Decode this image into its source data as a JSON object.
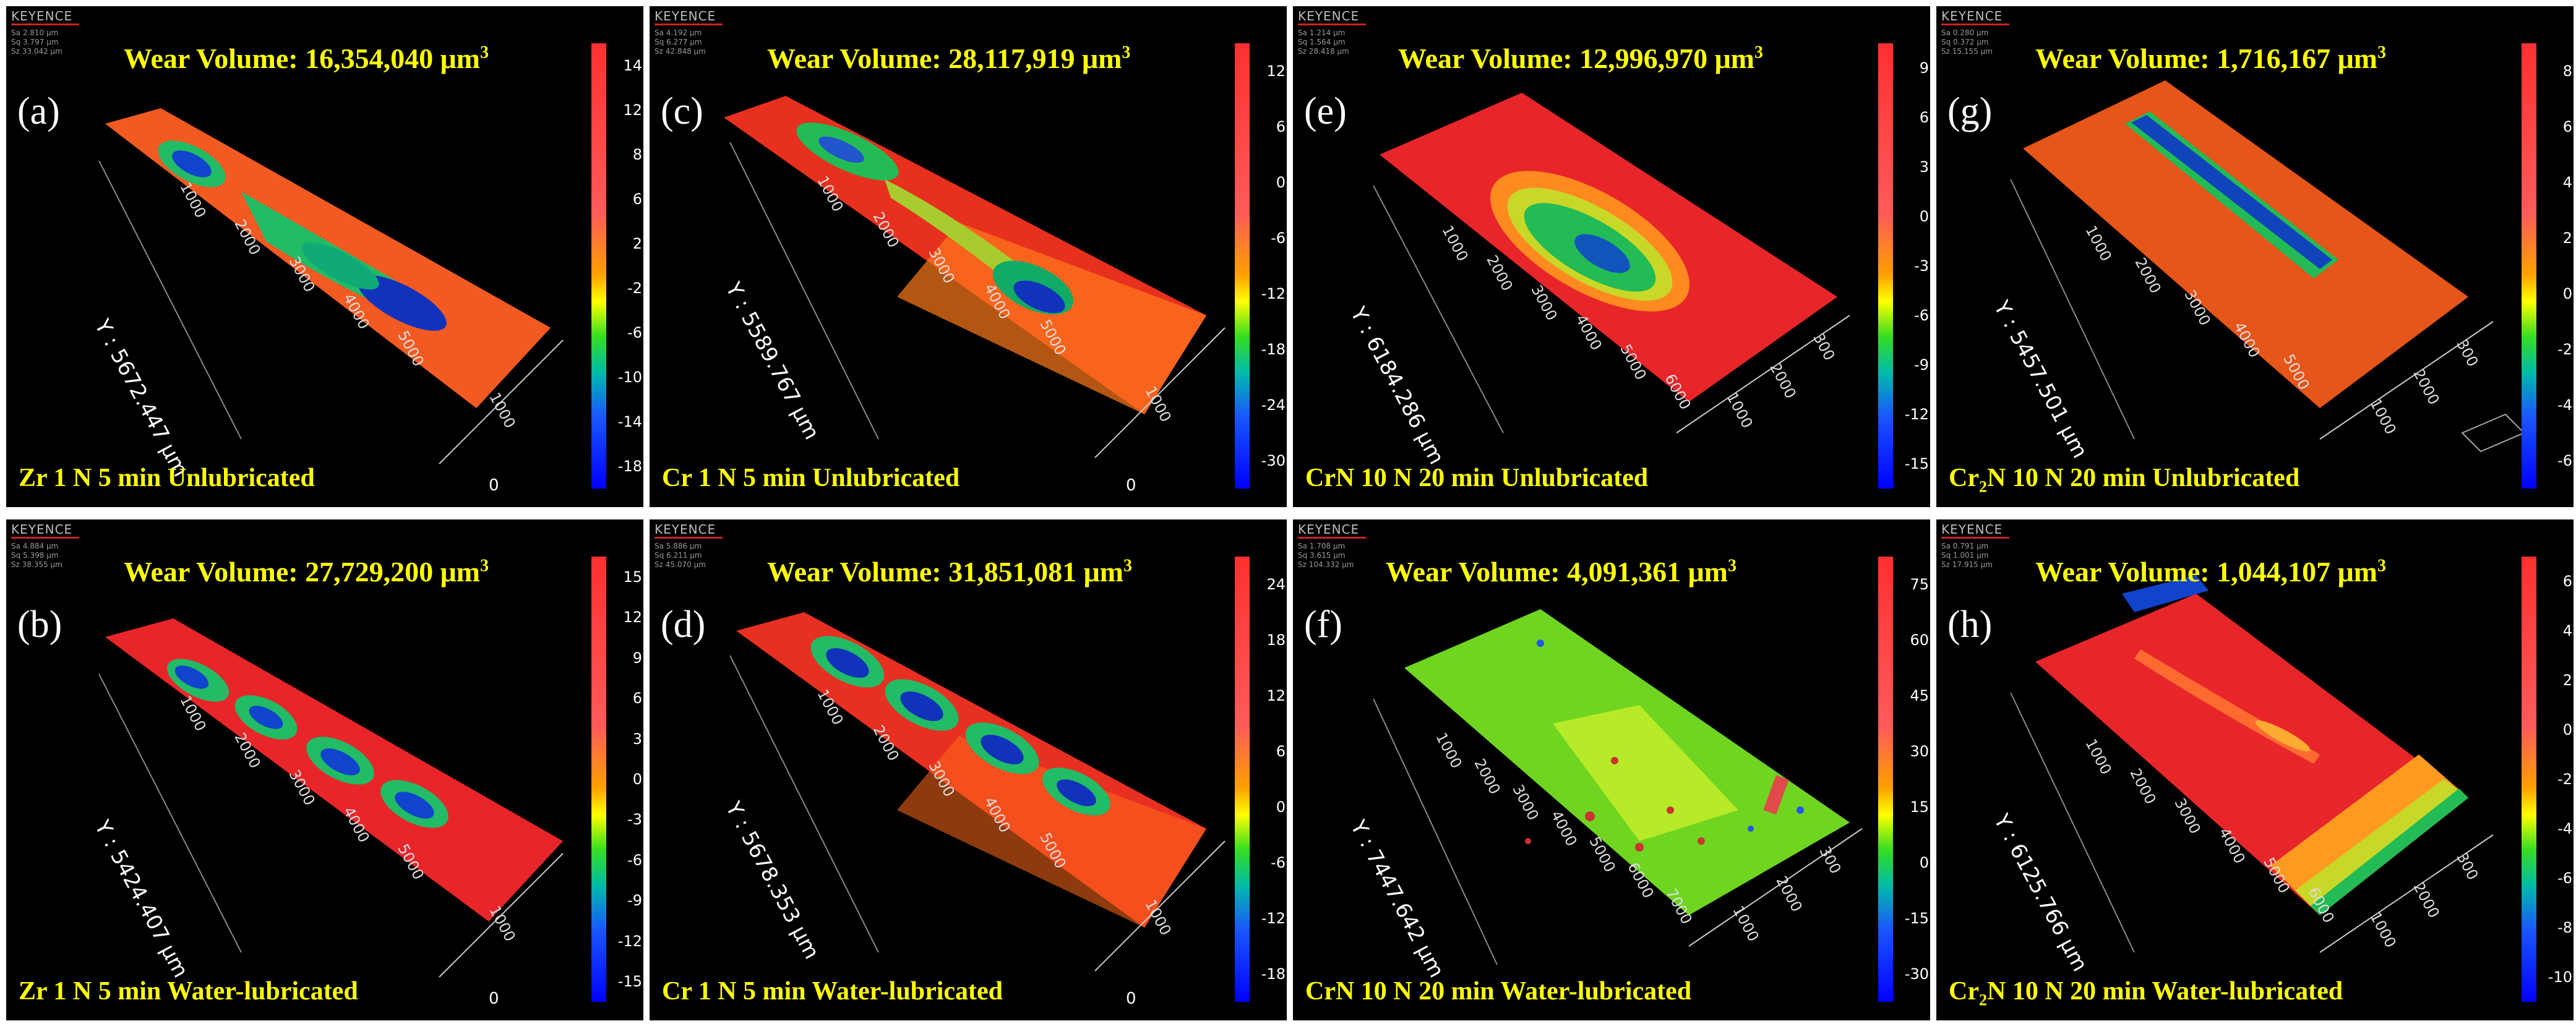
{
  "panels": {
    "a": {
      "label": "(a)",
      "volume_prefix": "Wear Volume: ",
      "volume_value": "16,354,040 μm",
      "volume_unit_exp": "3",
      "stats": [
        "Sa 2.810 μm",
        "Sq 3.797 μm",
        "Sz 33.042 μm"
      ],
      "cap_pre": "Zr 1 N 5 min Unlubricated",
      "cap_sub": "",
      "cap_post": "",
      "y_label": "Y : 5672.447 μm",
      "ticks": [
        "14",
        "12",
        "8",
        "6",
        "2",
        "-2",
        "-6",
        "-10",
        "-14",
        "-18"
      ],
      "x_ticks": [
        "1000",
        "2000",
        "3000",
        "4000",
        "5000"
      ],
      "w_ticks": [
        "1000"
      ]
    },
    "c": {
      "label": "(c)",
      "volume_prefix": "Wear Volume: ",
      "volume_value": "28,117,919 μm",
      "volume_unit_exp": "3",
      "stats": [
        "Sa 4.192 μm",
        "Sq 6.277 μm",
        "Sz 42.848 μm"
      ],
      "cap_pre": "Cr 1 N 5 min Unlubricated",
      "cap_sub": "",
      "cap_post": "",
      "y_label": "Y : 5589.767 μm",
      "ticks": [
        "12",
        "6",
        "0",
        "-6",
        "-12",
        "-18",
        "-24",
        "-30"
      ],
      "x_ticks": [
        "1000",
        "2000",
        "3000",
        "4000",
        "5000"
      ],
      "w_ticks": [
        "1000"
      ]
    },
    "e": {
      "label": "(e)",
      "volume_prefix": "Wear Volume: ",
      "volume_value": "12,996,970 μm",
      "volume_unit_exp": "3",
      "stats": [
        "Sa 1.214 μm",
        "Sq 1.564 μm",
        "Sz 28.418 μm"
      ],
      "cap_pre": "CrN 10 N 20 min Unlubricated",
      "cap_sub": "",
      "cap_post": "",
      "y_label": "Y : 6184.286 μm",
      "ticks": [
        "9",
        "6",
        "3",
        "0",
        "-3",
        "-6",
        "-9",
        "-12",
        "-15"
      ],
      "x_ticks": [
        "1000",
        "2000",
        "3000",
        "4000",
        "5000",
        "6000"
      ],
      "w_ticks": [
        "1000",
        "2000",
        "300"
      ]
    },
    "g": {
      "label": "(g)",
      "volume_prefix": "Wear Volume: ",
      "volume_value": "1,716,167 μm",
      "volume_unit_exp": "3",
      "stats": [
        "Sa 0.280 μm",
        "Sq 0.372 μm",
        "Sz 15.155 μm"
      ],
      "cap_pre": "Cr",
      "cap_sub": "2",
      "cap_post": "N 10 N 20 min Unlubricated",
      "y_label": "Y : 5457.501 μm",
      "ticks": [
        "8",
        "6",
        "4",
        "2",
        "0",
        "-2",
        "-4",
        "-6"
      ],
      "x_ticks": [
        "1000",
        "2000",
        "3000",
        "4000",
        "5000"
      ],
      "w_ticks": [
        "1000",
        "2000",
        "300"
      ]
    },
    "b": {
      "label": "(b)",
      "volume_prefix": "Wear Volume: ",
      "volume_value": "27,729,200 μm",
      "volume_unit_exp": "3",
      "stats": [
        "Sa 4.884 μm",
        "Sq 5.398 μm",
        "Sz 38.355 μm"
      ],
      "cap_pre": "Zr 1 N 5 min Water-lubricated",
      "cap_sub": "",
      "cap_post": "",
      "y_label": "Y : 5424.407 μm",
      "ticks": [
        "15",
        "12",
        "9",
        "6",
        "3",
        "0",
        "-3",
        "-6",
        "-9",
        "-12",
        "-15"
      ],
      "x_ticks": [
        "1000",
        "2000",
        "3000",
        "4000",
        "5000"
      ],
      "w_ticks": [
        "1000"
      ]
    },
    "d": {
      "label": "(d)",
      "volume_prefix": "Wear Volume: ",
      "volume_value": "31,851,081 μm",
      "volume_unit_exp": "3",
      "stats": [
        "Sa 5.886 μm",
        "Sq 6.211 μm",
        "Sz 45.070 μm"
      ],
      "cap_pre": "Cr 1 N 5 min Water-lubricated",
      "cap_sub": "",
      "cap_post": "",
      "y_label": "Y : 5678.353 μm",
      "ticks": [
        "24",
        "18",
        "12",
        "6",
        "0",
        "-6",
        "-12",
        "-18"
      ],
      "x_ticks": [
        "1000",
        "2000",
        "3000",
        "4000",
        "5000"
      ],
      "w_ticks": [
        "1000"
      ]
    },
    "f": {
      "label": "(f)",
      "volume_prefix": "Wear Volume: ",
      "volume_value": "4,091,361 μm",
      "volume_unit_exp": "3",
      "stats": [
        "Sa 1.708 μm",
        "Sq 3.615 μm",
        "Sz 104.332 μm"
      ],
      "cap_pre": "CrN 10 N 20 min Water-lubricated",
      "cap_sub": "",
      "cap_post": "",
      "y_label": "Y : 7447.642 μm",
      "ticks": [
        "75",
        "60",
        "45",
        "30",
        "15",
        "0",
        "-15",
        "-30"
      ],
      "x_ticks": [
        "1000",
        "2000",
        "3000",
        "4000",
        "5000",
        "6000",
        "7000"
      ],
      "w_ticks": [
        "1000",
        "2000",
        "300"
      ]
    },
    "h": {
      "label": "(h)",
      "volume_prefix": "Wear Volume: ",
      "volume_value": "1,044,107 μm",
      "volume_unit_exp": "3",
      "stats": [
        "Sa 0.791 μm",
        "Sq 1.001 μm",
        "Sz 17.915 μm"
      ],
      "cap_pre": "Cr",
      "cap_sub": "2",
      "cap_post": "N 10 N 20 min Water-lubricated",
      "y_label": "Y : 6125.766 μm",
      "ticks": [
        "6",
        "4",
        "2",
        "0",
        "-2",
        "-4",
        "-6",
        "-8",
        "-10"
      ],
      "x_ticks": [
        "1000",
        "2000",
        "3000",
        "4000",
        "5000",
        "6000"
      ],
      "w_ticks": [
        "1000",
        "2000",
        "300"
      ]
    }
  },
  "logo_text": "KEYENCE",
  "zero_label": "0"
}
